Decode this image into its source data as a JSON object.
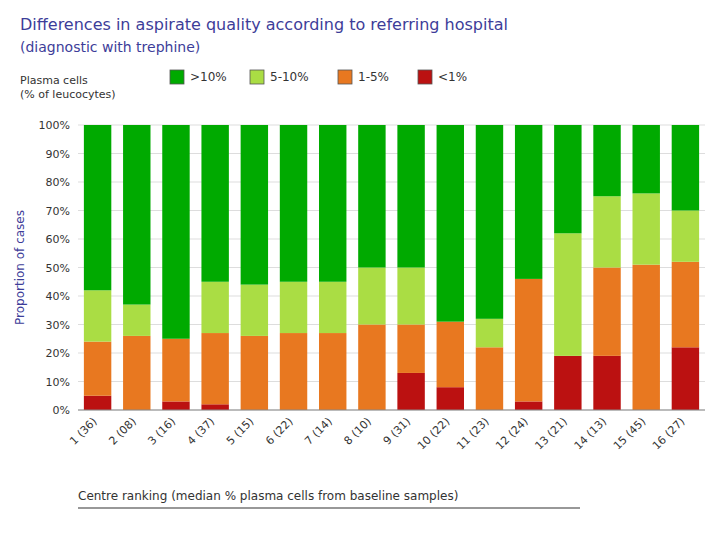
{
  "chart_data": {
    "type": "bar",
    "stacked": true,
    "title": "Differences in aspirate quality according to referring hospital",
    "subtitle": "(diagnostic with trephine)",
    "y_label": "Proportion of cases",
    "x_label": "Centre ranking (median % plasma cells from baseline samples)",
    "legend_title": "Plasma cells\n(% of leucocytes)",
    "legend": "top",
    "grid": true,
    "categories": [
      "1 (36)",
      "2 (08)",
      "3 (16)",
      "4 (37)",
      "5 (15)",
      "6 (22)",
      "7 (14)",
      "8 (10)",
      "9 (31)",
      "10 (22)",
      "11 (23)",
      "12 (24)",
      "13 (21)",
      "14 (13)",
      "15 (45)",
      "16 (27)"
    ],
    "series": [
      {
        "name": "<1%",
        "color": "#bb1111",
        "values": [
          5,
          0,
          3,
          2,
          0,
          0,
          0,
          0,
          13,
          8,
          0,
          3,
          19,
          19,
          0,
          22
        ]
      },
      {
        "name": "1-5%",
        "color": "#e87820",
        "values": [
          19,
          26,
          22,
          25,
          26,
          27,
          27,
          30,
          17,
          23,
          22,
          43,
          0,
          31,
          51,
          30
        ]
      },
      {
        "name": "5-10%",
        "color": "#aadd44",
        "values": [
          18,
          11,
          0,
          18,
          18,
          18,
          18,
          20,
          20,
          0,
          10,
          0,
          43,
          25,
          25,
          18
        ]
      },
      {
        "name": ">10%",
        "color": "#00aa00",
        "values": [
          58,
          63,
          75,
          55,
          56,
          55,
          55,
          50,
          50,
          69,
          68,
          54,
          38,
          25,
          24,
          30
        ]
      }
    ],
    "ylim": [
      0,
      100
    ],
    "yticks": [
      {
        "value": 0,
        "label": "0%"
      },
      {
        "value": 10,
        "label": "10%"
      },
      {
        "value": 20,
        "label": "20%"
      },
      {
        "value": 30,
        "label": "30%"
      },
      {
        "value": 40,
        "label": "40%"
      },
      {
        "value": 50,
        "label": "50%"
      },
      {
        "value": 60,
        "label": "60%"
      },
      {
        "value": 70,
        "label": "70%"
      },
      {
        "value": 80,
        "label": "80%"
      },
      {
        "value": 90,
        "label": "90%"
      },
      {
        "value": 100,
        "label": "100%"
      }
    ]
  }
}
